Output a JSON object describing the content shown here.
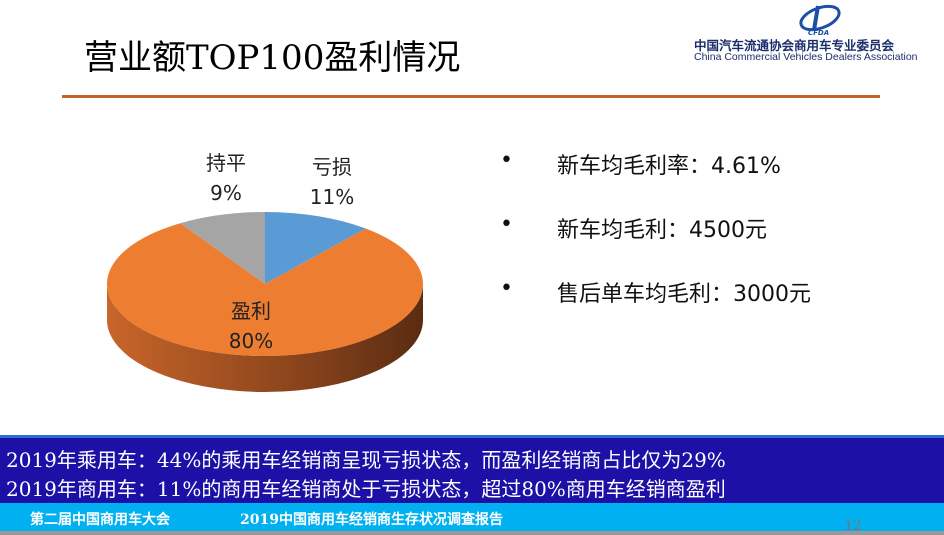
{
  "title": "营业额TOP100盈利情况",
  "logo": {
    "mark": "CFDA",
    "cn": "中国汽车流通协会商用车专业委员会",
    "en": "China Commercial Vehicles Dealers Association"
  },
  "chart_data": {
    "type": "pie",
    "style": "3d",
    "categories": [
      "亏损",
      "盈利",
      "持平"
    ],
    "values": [
      11,
      80,
      9
    ],
    "labels": [
      "11%",
      "80%",
      "9%"
    ],
    "colors": [
      "#5b9bd5",
      "#ed7d31",
      "#a5a5a5"
    ],
    "legend": "none"
  },
  "bullets": [
    {
      "marker": "•",
      "text": "新车均毛利率：4.61%"
    },
    {
      "marker": "•",
      "text": "新车均毛利：4500元"
    },
    {
      "marker": "•",
      "text": "售后单车均毛利：3000元"
    }
  ],
  "summary": [
    "2019年乘用车：44%的乘用车经销商呈现亏损状态，而盈利经销商占比仅为29%",
    "2019年商用车：11%的商用车经销商处于亏损状态，超过80%商用车经销商盈利"
  ],
  "footer": {
    "left": "第二届中国商用车大会",
    "right": "2019中国商用车经销商生存状况调查报告",
    "page": "12"
  }
}
